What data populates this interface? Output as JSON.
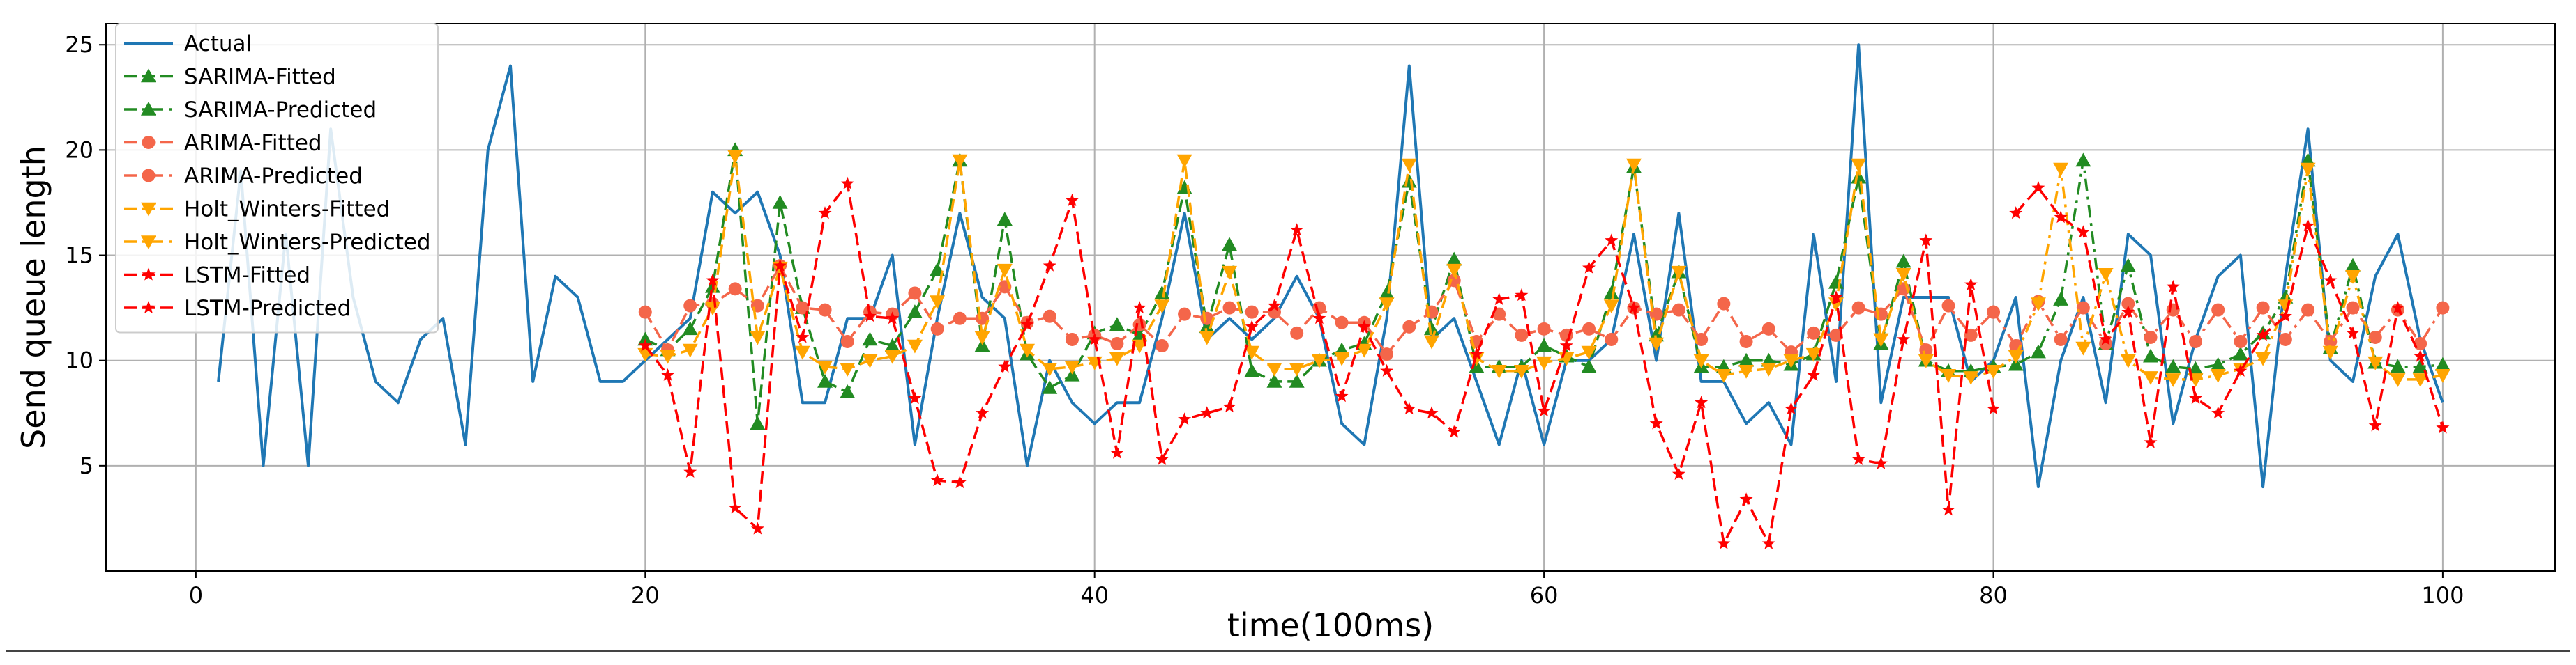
{
  "chart_data": {
    "type": "line",
    "title": "",
    "xlabel": "time(100ms)",
    "ylabel": "Send queue length",
    "xlim": [
      -4,
      105
    ],
    "ylim": [
      0,
      26
    ],
    "xticks": [
      0,
      20,
      40,
      60,
      80,
      100
    ],
    "yticks": [
      5,
      10,
      15,
      20,
      25
    ],
    "grid": true,
    "legend_position": "top-left",
    "series": [
      {
        "name": "Actual",
        "style": "solid",
        "marker": "none",
        "color": "#1f77b4",
        "x": [
          1,
          2,
          3,
          4,
          5,
          6,
          7,
          8,
          9,
          10,
          11,
          12,
          13,
          14,
          15,
          16,
          17,
          18,
          19,
          20,
          21,
          22,
          23,
          24,
          25,
          26,
          27,
          28,
          29,
          30,
          31,
          32,
          33,
          34,
          35,
          36,
          37,
          38,
          39,
          40,
          41,
          42,
          43,
          44,
          45,
          46,
          47,
          48,
          49,
          50,
          51,
          52,
          53,
          54,
          55,
          56,
          57,
          58,
          59,
          60,
          61,
          62,
          63,
          64,
          65,
          66,
          67,
          68,
          69,
          70,
          71,
          72,
          73,
          74,
          75,
          76,
          77,
          78,
          79,
          80,
          81,
          82,
          83,
          84,
          85,
          86,
          87,
          88,
          89,
          90,
          91,
          92,
          93,
          94,
          95,
          96,
          97,
          98,
          99,
          100
        ],
        "y": [
          9,
          19,
          5,
          16,
          5,
          21,
          13,
          9,
          8,
          11,
          12,
          6,
          20,
          24,
          9,
          14,
          13,
          9,
          9,
          10,
          11,
          12,
          18,
          17,
          18,
          15,
          8,
          8,
          12,
          12,
          15,
          6,
          12,
          17,
          13,
          12,
          5,
          10,
          8,
          7,
          8,
          8,
          12,
          17,
          11,
          12,
          11,
          12,
          14,
          12,
          7,
          6,
          12,
          24,
          11,
          12,
          9,
          6,
          10,
          6,
          10,
          10,
          11,
          16,
          10,
          17,
          9,
          9,
          7,
          8,
          6,
          16,
          9,
          25,
          8,
          13,
          13,
          13,
          9,
          10,
          13,
          4,
          10,
          13,
          8,
          16,
          15,
          7,
          11,
          14,
          15,
          4,
          14,
          21,
          10,
          9,
          14,
          16,
          11,
          8
        ]
      },
      {
        "name": "SARIMA-Fitted",
        "style": "dashed",
        "marker": "triangle-up",
        "color": "#228b22",
        "x": [
          20,
          21,
          22,
          23,
          24,
          25,
          26,
          27,
          28,
          29,
          30,
          31,
          32,
          33,
          34,
          35,
          36,
          37,
          38,
          39,
          40,
          41,
          42,
          43,
          44,
          45,
          46,
          47,
          48,
          49,
          50,
          51,
          52,
          53,
          54,
          55,
          56,
          57,
          58,
          59,
          60,
          61,
          62,
          63,
          64,
          65,
          66,
          67,
          68,
          69,
          70,
          71,
          72,
          73,
          74,
          75,
          76,
          77,
          78,
          79,
          80
        ],
        "y": [
          11,
          10.5,
          11.5,
          13.5,
          20,
          7,
          17.5,
          12.5,
          9,
          8.5,
          11,
          10.7,
          12.3,
          14.3,
          19.5,
          10.7,
          16.7,
          10.3,
          8.7,
          9.3,
          11.3,
          11.7,
          11.2,
          13.2,
          18.2,
          11.6,
          15.5,
          9.5,
          9,
          9,
          10,
          10.5,
          10.8,
          13.2,
          18.5,
          11.5,
          14.8,
          9.7,
          9.7,
          9.7,
          10.7,
          10.2,
          9.7,
          13.2,
          19.2,
          11.2,
          14.2,
          9.7,
          9.7,
          10,
          10,
          9.8,
          10.3,
          13.7,
          18.7,
          10.8,
          14.7,
          10,
          9.5,
          9.5,
          9.7
        ]
      },
      {
        "name": "SARIMA-Predicted",
        "style": "dashdot",
        "marker": "triangle-up",
        "color": "#228b22",
        "x": [
          80,
          81,
          82,
          83,
          84,
          85,
          86,
          87,
          88,
          89,
          90,
          91,
          92,
          93,
          94,
          95,
          96,
          97,
          98,
          99,
          100
        ],
        "y": [
          9.7,
          9.8,
          10.4,
          12.9,
          19.5,
          10.8,
          14.5,
          10.2,
          9.7,
          9.6,
          9.8,
          10.3,
          11.3,
          13,
          19.5,
          10.6,
          14.5,
          9.9,
          9.7,
          9.7,
          9.8
        ]
      },
      {
        "name": "ARIMA-Fitted",
        "style": "dashed",
        "marker": "circle",
        "color": "#f4664a",
        "x": [
          20,
          21,
          22,
          23,
          24,
          25,
          26,
          27,
          28,
          29,
          30,
          31,
          32,
          33,
          34,
          35,
          36,
          37,
          38,
          39,
          40,
          41,
          42,
          43,
          44,
          45,
          46,
          47,
          48,
          49,
          50,
          51,
          52,
          53,
          54,
          55,
          56,
          57,
          58,
          59,
          60,
          61,
          62,
          63,
          64,
          65,
          66,
          67,
          68,
          69,
          70,
          71,
          72,
          73,
          74,
          75,
          76,
          77,
          78,
          79,
          80
        ],
        "y": [
          12.3,
          10.5,
          12.6,
          12.7,
          13.4,
          12.6,
          14.5,
          12.5,
          12.4,
          10.9,
          12.3,
          12.2,
          13.2,
          11.5,
          12,
          12,
          13.5,
          11.8,
          12.1,
          11,
          11.2,
          10.8,
          11.7,
          10.7,
          12.2,
          12,
          12.5,
          12.3,
          12.3,
          11.3,
          12.5,
          11.8,
          11.8,
          10.3,
          11.6,
          12.3,
          13.8,
          10.9,
          12.2,
          11.2,
          11.5,
          11.2,
          11.5,
          11,
          12.5,
          12.2,
          12.4,
          11,
          12.7,
          10.9,
          11.5,
          10.4,
          11.3,
          11.2,
          12.5,
          12.2,
          13.4,
          10.5,
          12.6,
          11.2,
          12.3
        ]
      },
      {
        "name": "ARIMA-Predicted",
        "style": "dashdot",
        "marker": "circle",
        "color": "#f4664a",
        "x": [
          80,
          81,
          82,
          83,
          84,
          85,
          86,
          87,
          88,
          89,
          90,
          91,
          92,
          93,
          94,
          95,
          96,
          97,
          98,
          99,
          100
        ],
        "y": [
          12.3,
          10.7,
          12.8,
          11,
          12.5,
          10.8,
          12.7,
          11.1,
          12.4,
          10.9,
          12.4,
          10.9,
          12.5,
          11,
          12.4,
          10.9,
          12.5,
          11.1,
          12.4,
          10.8,
          12.5
        ]
      },
      {
        "name": "Holt_Winters-Fitted",
        "style": "dashed",
        "marker": "triangle-down",
        "color": "#ffa500",
        "x": [
          20,
          21,
          22,
          23,
          24,
          25,
          26,
          27,
          28,
          29,
          30,
          31,
          32,
          33,
          34,
          35,
          36,
          37,
          38,
          39,
          40,
          41,
          42,
          43,
          44,
          45,
          46,
          47,
          48,
          49,
          50,
          51,
          52,
          53,
          54,
          55,
          56,
          57,
          58,
          59,
          60,
          61,
          62,
          63,
          64,
          65,
          66,
          67,
          68,
          69,
          70,
          71,
          72,
          73,
          74,
          75,
          76,
          77,
          78,
          79,
          80
        ],
        "y": [
          10.3,
          10.2,
          10.5,
          12.5,
          19.7,
          11.1,
          14.4,
          10.4,
          9.7,
          9.6,
          10,
          10.2,
          10.7,
          12.8,
          19.5,
          11.1,
          14.3,
          10.5,
          9.6,
          9.7,
          9.9,
          10.1,
          10.7,
          12.6,
          19.5,
          11.1,
          14.2,
          10.4,
          9.6,
          9.6,
          10,
          10.1,
          10.5,
          12.7,
          19.3,
          10.9,
          14.3,
          10.1,
          9.5,
          9.5,
          9.9,
          10.1,
          10.4,
          12.6,
          19.3,
          10.8,
          14.2,
          10,
          9.3,
          9.5,
          9.6,
          10,
          10.3,
          12.7,
          19.3,
          11,
          14.1,
          10,
          9.3,
          9.2,
          9.5
        ]
      },
      {
        "name": "Holt_Winters-Predicted",
        "style": "dashdot",
        "marker": "triangle-down",
        "color": "#ffa500",
        "x": [
          80,
          81,
          82,
          83,
          84,
          85,
          86,
          87,
          88,
          89,
          90,
          91,
          92,
          93,
          94,
          95,
          96,
          97,
          98,
          99,
          100
        ],
        "y": [
          9.5,
          10.2,
          12.7,
          19.1,
          10.6,
          14.1,
          10,
          9.2,
          9.1,
          9.1,
          9.3,
          9.6,
          10.1,
          12.6,
          19.1,
          10.4,
          14,
          9.9,
          9.1,
          9.1,
          9.3
        ]
      },
      {
        "name": "LSTM-Fitted",
        "style": "dashed",
        "marker": "star",
        "color": "#ff0000",
        "x": [
          20,
          21,
          22,
          23,
          24,
          25,
          26,
          27,
          28,
          29,
          30,
          31,
          32,
          33,
          34,
          35,
          36,
          37,
          38,
          39,
          40,
          41,
          42,
          43,
          44,
          45,
          46,
          47,
          48,
          49,
          50,
          51,
          52,
          53,
          54,
          55,
          56,
          57,
          58,
          59,
          60,
          61,
          62,
          63,
          64,
          65,
          66,
          67,
          68,
          69,
          70,
          71,
          72,
          73,
          74,
          75,
          76,
          77,
          78,
          79,
          80
        ],
        "y": [
          10.7,
          9.3,
          4.7,
          13.8,
          3,
          2,
          14.5,
          11.1,
          17,
          18.4,
          12.1,
          12,
          8.2,
          4.3,
          4.2,
          7.5,
          9.7,
          11.7,
          14.5,
          17.6,
          11,
          5.6,
          12.5,
          5.3,
          7.2,
          7.5,
          7.8,
          11.6,
          12.6,
          16.2,
          12,
          8.3,
          11.6,
          9.5,
          7.7,
          7.5,
          6.6,
          10.3,
          12.9,
          13.1,
          7.6,
          10.7,
          14.4,
          15.7,
          12.5,
          7,
          4.6,
          8,
          1.3,
          3.4,
          1.3,
          7.7,
          9.3,
          13,
          5.3,
          5.1,
          11,
          15.7,
          2.9,
          13.6,
          7.7
        ]
      },
      {
        "name": "LSTM-Predicted",
        "style": "dashed",
        "marker": "star",
        "color": "#ff0000",
        "x": [
          81,
          82,
          83,
          84,
          85,
          86,
          87,
          88,
          89,
          90,
          91,
          92,
          93,
          94,
          95,
          96,
          97,
          98,
          99,
          100
        ],
        "y": [
          17,
          18.2,
          16.8,
          16.1,
          11,
          12.3,
          6.1,
          13.5,
          8.2,
          7.5,
          9.5,
          11.2,
          12.1,
          16.4,
          13.8,
          11.3,
          6.9,
          12.5,
          10.2,
          6.8
        ]
      }
    ]
  }
}
